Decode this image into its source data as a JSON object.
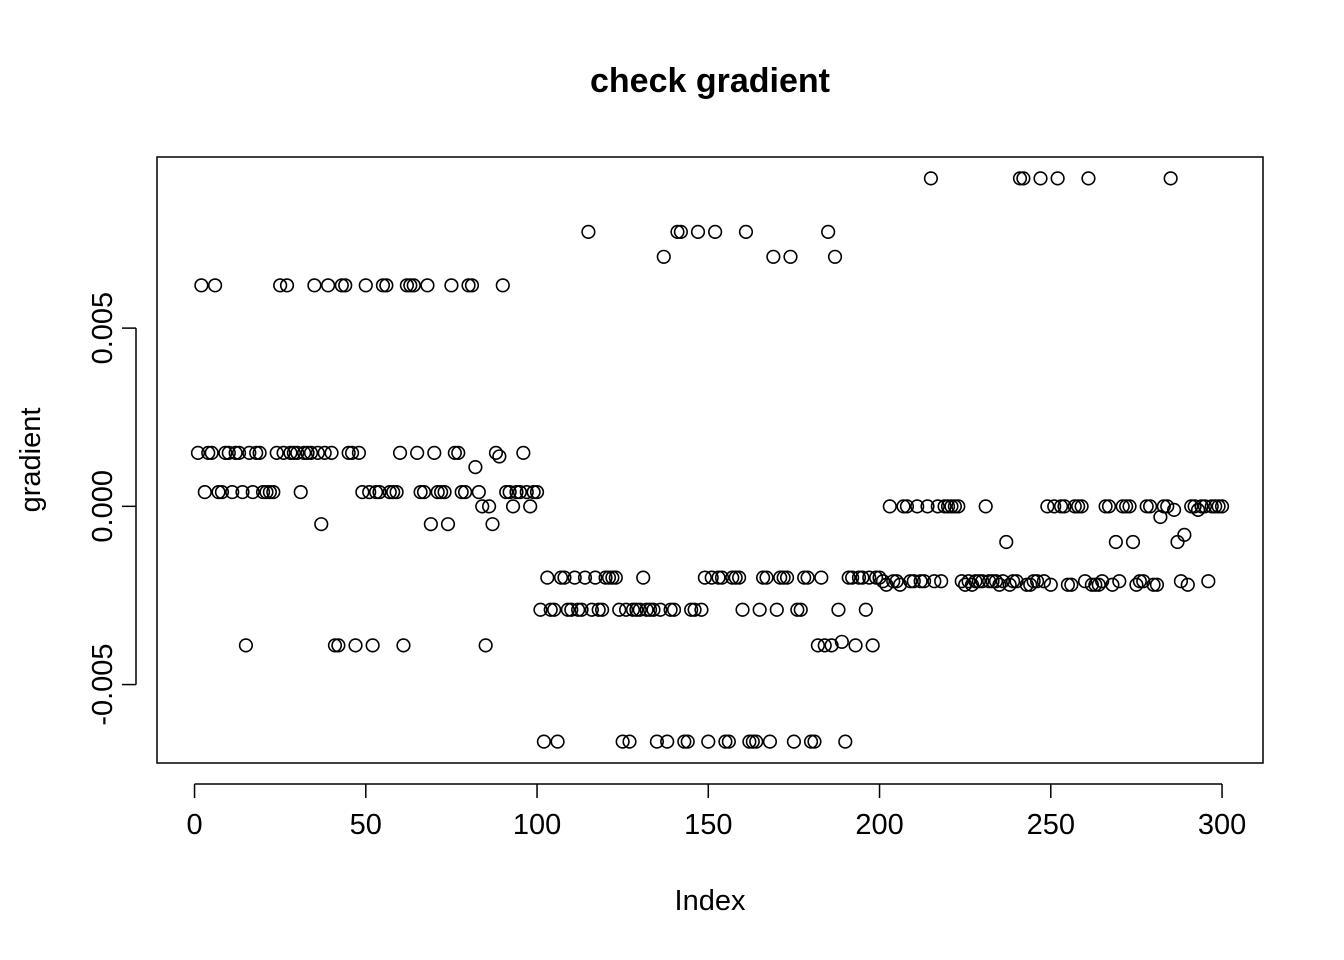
{
  "chart_data": {
    "type": "scatter",
    "title": "check gradient",
    "x_label": "Index",
    "y_label": "gradient",
    "color": "#000000",
    "xlim": [
      -10.96,
      311.96
    ],
    "ylim": [
      -0.0072,
      0.0098
    ],
    "xticks": [
      0,
      50,
      100,
      150,
      200,
      250,
      300
    ],
    "yticks": [
      -0.005,
      {
        "value": 0,
        "label": "0.000"
      },
      0.005
    ],
    "x": [
      1,
      2,
      3,
      4,
      5,
      6,
      7,
      8,
      9,
      10,
      11,
      12,
      13,
      14,
      15,
      16,
      17,
      18,
      19,
      20,
      21,
      22,
      23,
      24,
      25,
      26,
      27,
      28,
      29,
      30,
      31,
      32,
      33,
      34,
      35,
      36,
      37,
      38,
      39,
      40,
      41,
      42,
      43,
      44,
      45,
      46,
      47,
      48,
      49,
      50,
      51,
      52,
      53,
      54,
      55,
      56,
      57,
      58,
      59,
      60,
      61,
      62,
      63,
      64,
      65,
      66,
      67,
      68,
      69,
      70,
      71,
      72,
      73,
      74,
      75,
      76,
      77,
      78,
      79,
      80,
      81,
      82,
      83,
      84,
      85,
      86,
      87,
      88,
      89,
      90,
      91,
      92,
      93,
      94,
      95,
      96,
      97,
      98,
      99,
      100,
      101,
      102,
      103,
      104,
      105,
      106,
      107,
      108,
      109,
      110,
      111,
      112,
      113,
      114,
      115,
      116,
      117,
      118,
      119,
      120,
      121,
      122,
      123,
      124,
      125,
      126,
      127,
      128,
      129,
      130,
      131,
      132,
      133,
      134,
      135,
      136,
      137,
      138,
      139,
      140,
      141,
      142,
      143,
      144,
      145,
      146,
      147,
      148,
      149,
      150,
      151,
      152,
      153,
      154,
      155,
      156,
      157,
      158,
      159,
      160,
      161,
      162,
      163,
      164,
      165,
      166,
      167,
      168,
      169,
      170,
      171,
      172,
      173,
      174,
      175,
      176,
      177,
      178,
      179,
      180,
      181,
      182,
      183,
      184,
      185,
      186,
      187,
      188,
      189,
      190,
      191,
      192,
      193,
      194,
      195,
      196,
      197,
      198,
      199,
      200,
      201,
      202,
      203,
      204,
      205,
      206,
      207,
      208,
      209,
      210,
      211,
      212,
      213,
      214,
      215,
      216,
      217,
      218,
      219,
      220,
      221,
      222,
      223,
      224,
      225,
      226,
      227,
      228,
      229,
      230,
      231,
      232,
      233,
      234,
      235,
      236,
      237,
      238,
      239,
      240,
      241,
      242,
      243,
      244,
      245,
      246,
      247,
      248,
      249,
      250,
      251,
      252,
      253,
      254,
      255,
      256,
      257,
      258,
      259,
      260,
      261,
      262,
      263,
      264,
      265,
      266,
      267,
      268,
      269,
      270,
      271,
      272,
      273,
      274,
      275,
      276,
      277,
      278,
      279,
      280,
      281,
      282,
      283,
      284,
      285,
      286,
      287,
      288,
      289,
      290,
      291,
      292,
      293,
      294,
      295,
      296,
      297,
      298,
      299,
      300
    ],
    "y": [
      0.0015,
      0.0062,
      0.0004,
      0.0015,
      0.0015,
      0.0062,
      0.0004,
      0.0004,
      0.0015,
      0.0015,
      0.0004,
      0.0015,
      0.0015,
      0.0004,
      -0.0039,
      0.0015,
      0.0004,
      0.0015,
      0.0015,
      0.0004,
      0.0004,
      0.0004,
      0.0004,
      0.0015,
      0.0062,
      0.0015,
      0.0062,
      0.0015,
      0.0015,
      0.0015,
      0.0004,
      0.0015,
      0.0015,
      0.0015,
      0.0062,
      0.0015,
      -0.0005,
      0.0015,
      0.0062,
      0.0015,
      -0.0039,
      -0.0039,
      0.0062,
      0.0062,
      0.0015,
      0.0015,
      -0.0039,
      0.0015,
      0.0004,
      0.0062,
      0.0004,
      -0.0039,
      0.0004,
      0.0004,
      0.0062,
      0.0062,
      0.0004,
      0.0004,
      0.0004,
      0.0015,
      -0.0039,
      0.0062,
      0.0062,
      0.0062,
      0.0015,
      0.0004,
      0.0004,
      0.0062,
      -0.0005,
      0.0015,
      0.0004,
      0.0004,
      0.0004,
      -0.0005,
      0.0062,
      0.0015,
      0.0015,
      0.0004,
      0.0004,
      0.0062,
      0.0062,
      0.0011,
      0.0004,
      0,
      -0.0039,
      0,
      -0.0005,
      0.0015,
      0.0014,
      0.0062,
      0.0004,
      0.0004,
      0,
      0.0004,
      0.0004,
      0.0015,
      0.0004,
      0,
      0.0004,
      0.0004,
      -0.0029,
      -0.0066,
      -0.002,
      -0.0029,
      -0.0029,
      -0.0066,
      -0.002,
      -0.002,
      -0.0029,
      -0.0029,
      -0.002,
      -0.0029,
      -0.0029,
      -0.002,
      0.0077,
      -0.0029,
      -0.002,
      -0.0029,
      -0.0029,
      -0.002,
      -0.002,
      -0.002,
      -0.002,
      -0.0029,
      -0.0066,
      -0.0029,
      -0.0066,
      -0.0029,
      -0.0029,
      -0.0029,
      -0.002,
      -0.0029,
      -0.0029,
      -0.0029,
      -0.0066,
      -0.0029,
      0.007,
      -0.0066,
      -0.0029,
      -0.0029,
      0.0077,
      0.0077,
      -0.0066,
      -0.0066,
      -0.0029,
      -0.0029,
      0.0077,
      -0.0029,
      -0.002,
      -0.0066,
      -0.002,
      0.0077,
      -0.002,
      -0.002,
      -0.0066,
      -0.0066,
      -0.002,
      -0.002,
      -0.002,
      -0.0029,
      0.0077,
      -0.0066,
      -0.0066,
      -0.0066,
      -0.0029,
      -0.002,
      -0.002,
      -0.0066,
      0.007,
      -0.0029,
      -0.002,
      -0.002,
      -0.002,
      0.007,
      -0.0066,
      -0.0029,
      -0.0029,
      -0.002,
      -0.002,
      -0.0066,
      -0.0066,
      -0.0039,
      -0.002,
      -0.0039,
      0.0077,
      -0.0039,
      0.007,
      -0.0029,
      -0.0038,
      -0.0066,
      -0.002,
      -0.002,
      -0.0039,
      -0.002,
      -0.002,
      -0.0029,
      -0.002,
      -0.0039,
      -0.002,
      -0.002,
      -0.0021,
      -0.0022,
      0,
      -0.0021,
      -0.0021,
      -0.0022,
      0,
      0,
      -0.0021,
      -0.0021,
      0,
      -0.0021,
      -0.0021,
      0,
      0.0092,
      -0.0021,
      0,
      -0.0021,
      0,
      0,
      0,
      0,
      0,
      -0.0021,
      -0.0022,
      -0.0021,
      -0.0022,
      -0.0021,
      -0.0021,
      -0.0021,
      0,
      -0.0021,
      -0.0021,
      -0.0021,
      -0.0022,
      -0.0021,
      -0.001,
      -0.0022,
      -0.0021,
      -0.0021,
      0.0092,
      0.0092,
      -0.0022,
      -0.0022,
      -0.0021,
      -0.0021,
      0.0092,
      -0.0021,
      0,
      -0.0022,
      0,
      0.0092,
      0,
      0,
      -0.0022,
      -0.0022,
      0,
      0,
      0,
      -0.0021,
      0.0092,
      -0.0022,
      -0.0022,
      -0.0022,
      -0.0021,
      0,
      0,
      -0.0022,
      -0.001,
      -0.0021,
      0,
      0,
      0,
      -0.001,
      -0.0022,
      -0.0021,
      -0.0021,
      0,
      0,
      -0.0022,
      -0.0022,
      -0.0003,
      0,
      0,
      0.0092,
      -0.0001,
      -0.001,
      -0.0021,
      -0.0008,
      -0.0022,
      0,
      0,
      -0.0001,
      0,
      0,
      -0.0021,
      0,
      0,
      0,
      0
    ]
  }
}
